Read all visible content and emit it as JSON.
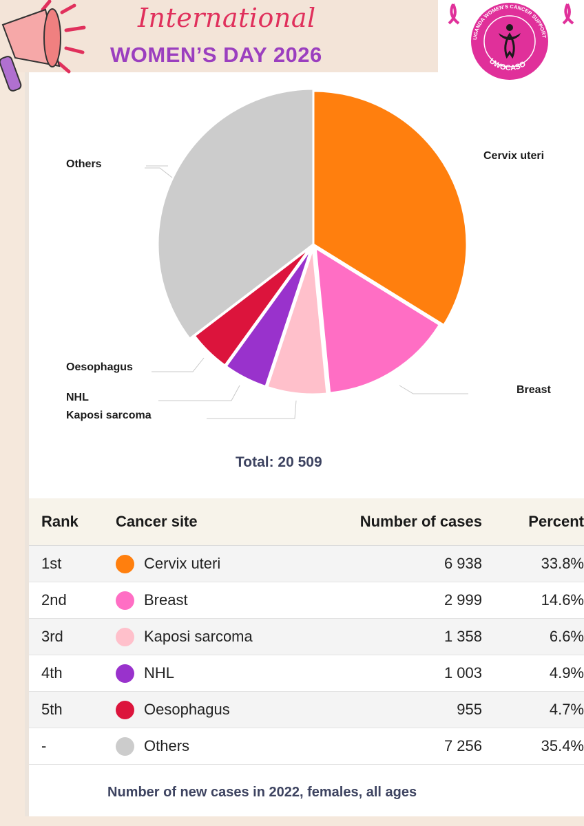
{
  "banner": {
    "line1": "International",
    "line2": "WOMEN’S DAY 2026"
  },
  "logo": {
    "arc_text": "UGANDA WOMEN’S CANCER SUPPORT ORGANISATION",
    "acronym": "UWOCASO"
  },
  "colors": {
    "cervix": "#ff7f0e",
    "breast": "#ff6ec4",
    "kaposi": "#ffc0cb",
    "nhl": "#9932cc",
    "oesophagus": "#dc143c",
    "others": "#cccccc",
    "brand_pink": "#e0305c",
    "brand_purple": "#9b3fbf"
  },
  "chart_data": {
    "type": "pie",
    "total_label": "Total: 20 509",
    "caption": "Number of new cases in 2022, females, all ages",
    "slices": [
      {
        "label": "Cervix uteri",
        "value": 6938,
        "percent": 33.8,
        "color": "#ff7f0e"
      },
      {
        "label": "Breast",
        "value": 2999,
        "percent": 14.6,
        "color": "#ff6ec4"
      },
      {
        "label": "Kaposi sarcoma",
        "value": 1358,
        "percent": 6.6,
        "color": "#ffc0cb"
      },
      {
        "label": "NHL",
        "value": 1003,
        "percent": 4.9,
        "color": "#9932cc"
      },
      {
        "label": "Oesophagus",
        "value": 955,
        "percent": 4.7,
        "color": "#dc143c"
      },
      {
        "label": "Others",
        "value": 7256,
        "percent": 35.4,
        "color": "#cccccc"
      }
    ]
  },
  "table": {
    "headers": [
      "Rank",
      "Cancer site",
      "Number of cases",
      "Percent"
    ],
    "rows": [
      {
        "rank": "1st",
        "site": "Cervix uteri",
        "cases": "6 938",
        "percent": "33.8%",
        "color": "#ff7f0e"
      },
      {
        "rank": "2nd",
        "site": "Breast",
        "cases": "2 999",
        "percent": "14.6%",
        "color": "#ff6ec4"
      },
      {
        "rank": "3rd",
        "site": "Kaposi sarcoma",
        "cases": "1 358",
        "percent": "6.6%",
        "color": "#ffc0cb"
      },
      {
        "rank": "4th",
        "site": "NHL",
        "cases": "1 003",
        "percent": "4.9%",
        "color": "#9932cc"
      },
      {
        "rank": "5th",
        "site": "Oesophagus",
        "cases": "955",
        "percent": "4.7%",
        "color": "#dc143c"
      },
      {
        "rank": "-",
        "site": "Others",
        "cases": "7 256",
        "percent": "35.4%",
        "color": "#cccccc"
      }
    ]
  }
}
